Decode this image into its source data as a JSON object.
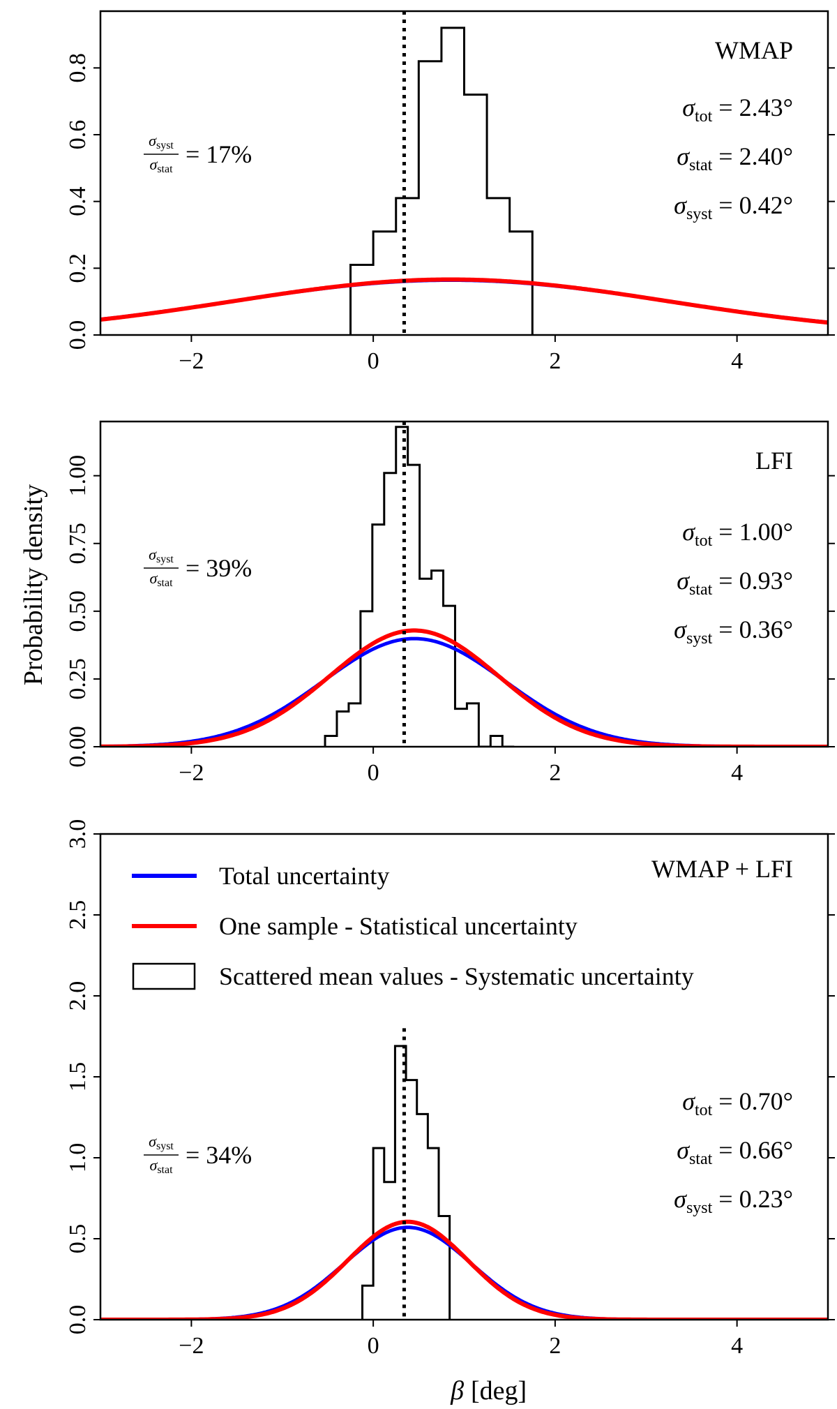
{
  "figure": {
    "ylabel": "Probability density",
    "xlabel_symbol": "β",
    "xlabel_unit": "[deg]"
  },
  "legend": {
    "placement": "top-left of bottom panel",
    "entries": [
      {
        "label": "Total uncertainty",
        "type": "line",
        "color": "#0000ff"
      },
      {
        "label": "One sample - Statistical uncertainty",
        "type": "line",
        "color": "#ff0000"
      },
      {
        "label": "Scattered mean values - Systematic uncertainty",
        "type": "hist",
        "color": "#000000"
      }
    ]
  },
  "colors": {
    "total": "#0000ff",
    "stat": "#ff0000",
    "syst": "#000000"
  },
  "chart_data": [
    {
      "type": "line",
      "panel": "top",
      "title": "WMAP",
      "xlim": [
        -3,
        5
      ],
      "ylim": [
        0,
        0.97
      ],
      "xticks": [
        -2,
        0,
        2,
        4
      ],
      "yticks": [
        0.0,
        0.2,
        0.4,
        0.6,
        0.8
      ],
      "ytick_labels": [
        "0.0",
        "0.2",
        "0.4",
        "0.6",
        "0.8"
      ],
      "vline_x": 0.34,
      "ratio_label": "17%",
      "sigma": {
        "tot": "2.43°",
        "stat": "2.40°",
        "syst": "0.42°"
      },
      "gauss_total": {
        "mean": 0.85,
        "sigma": 2.43
      },
      "gauss_stat": {
        "mean": 0.85,
        "sigma": 2.4
      },
      "hist": {
        "bin_edges_approx": true,
        "bin_edges": [
          -0.25,
          0.0,
          0.25,
          0.5,
          0.75,
          1.0,
          1.25,
          1.5,
          1.75
        ],
        "values": [
          0.21,
          0.31,
          0.41,
          0.82,
          0.92,
          0.72,
          0.41,
          0.31
        ]
      }
    },
    {
      "type": "line",
      "panel": "middle",
      "title": "LFI",
      "xlim": [
        -3,
        5
      ],
      "ylim": [
        0,
        1.2
      ],
      "xticks": [
        -2,
        0,
        2,
        4
      ],
      "yticks": [
        0.0,
        0.25,
        0.5,
        0.75,
        1.0
      ],
      "ytick_labels": [
        "0.00",
        "0.25",
        "0.50",
        "0.75",
        "1.00"
      ],
      "vline_x": 0.34,
      "ratio_label": "39%",
      "sigma": {
        "tot": "1.00°",
        "stat": "0.93°",
        "syst": "0.36°"
      },
      "gauss_total": {
        "mean": 0.45,
        "sigma": 1.0
      },
      "gauss_stat": {
        "mean": 0.45,
        "sigma": 0.93
      },
      "hist": {
        "bin_edges_approx": true,
        "bin_edges": [
          -0.53,
          -0.4,
          -0.27,
          -0.14,
          -0.01,
          0.12,
          0.25,
          0.38,
          0.51,
          0.64,
          0.77,
          0.9,
          1.03,
          1.16,
          1.29,
          1.42,
          1.55
        ],
        "values": [
          0.04,
          0.13,
          0.16,
          0.5,
          0.82,
          1.01,
          1.18,
          1.04,
          0.62,
          0.65,
          0.52,
          0.14,
          0.16,
          0.0,
          0.04,
          0.0
        ]
      }
    },
    {
      "type": "line",
      "panel": "bottom",
      "title": "WMAP + LFI",
      "xlim": [
        -3,
        5
      ],
      "ylim": [
        0,
        3.0
      ],
      "xticks": [
        -2,
        0,
        2,
        4
      ],
      "yticks": [
        0.0,
        0.5,
        1.0,
        1.5,
        2.0,
        2.5,
        3.0
      ],
      "ytick_labels": [
        "0.0",
        "0.5",
        "1.0",
        "1.5",
        "2.0",
        "2.5",
        "3.0"
      ],
      "vline_x": 0.34,
      "vline_ymax": 1.8,
      "ratio_label": "34%",
      "sigma": {
        "tot": "0.70°",
        "stat": "0.66°",
        "syst": "0.23°"
      },
      "gauss_total": {
        "mean": 0.38,
        "sigma": 0.7
      },
      "gauss_stat": {
        "mean": 0.38,
        "sigma": 0.66
      },
      "hist": {
        "bin_edges_approx": true,
        "bin_edges": [
          -0.12,
          0.0,
          0.12,
          0.24,
          0.36,
          0.48,
          0.6,
          0.72,
          0.84
        ],
        "values": [
          0.21,
          1.06,
          0.85,
          1.69,
          1.48,
          1.27,
          1.06,
          0.64
        ]
      }
    }
  ]
}
